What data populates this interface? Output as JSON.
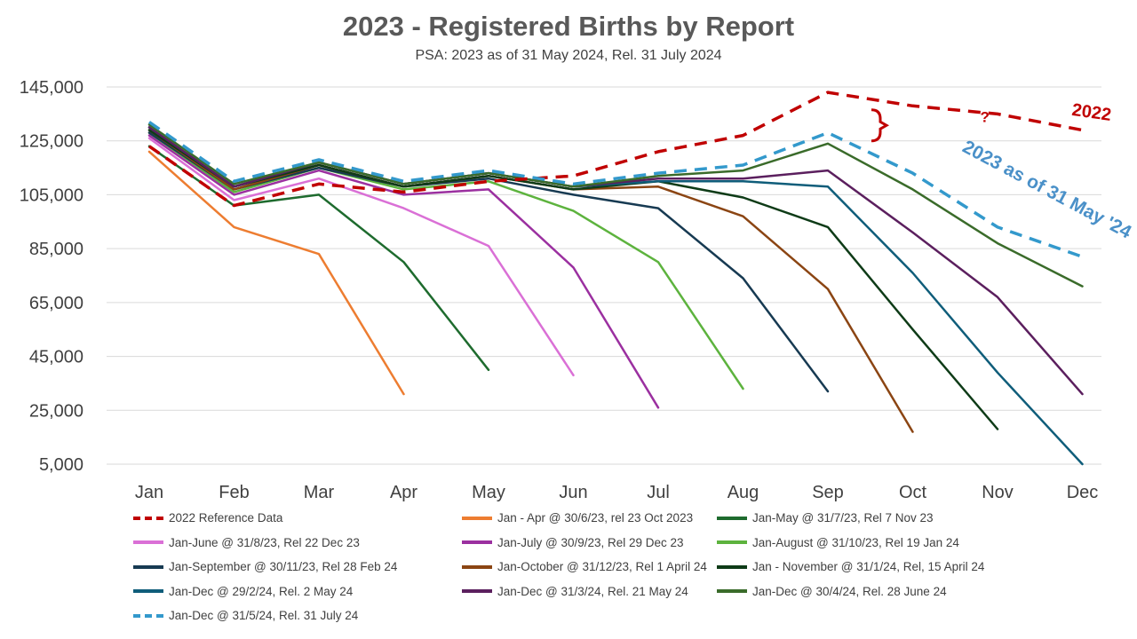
{
  "chart_data": {
    "type": "line",
    "title": "2023 - Registered Births by Report",
    "subtitle": "PSA: 2023 as of 31 May 2024, Rel. 31 July 2024",
    "categories": [
      "Jan",
      "Feb",
      "Mar",
      "Apr",
      "May",
      "Jun",
      "Jul",
      "Aug",
      "Sep",
      "Oct",
      "Nov",
      "Dec"
    ],
    "ylim": [
      5000,
      145000
    ],
    "yticks": [
      "145,000",
      "125,000",
      "105,000",
      "85,000",
      "65,000",
      "45,000",
      "25,000",
      "5,000"
    ],
    "ytick_values": [
      145000,
      125000,
      105000,
      85000,
      65000,
      45000,
      25000,
      5000
    ],
    "grid": true,
    "legend_position": "bottom",
    "annotations": [
      {
        "text": "2022",
        "color": "#C00000",
        "x": 11.1,
        "y": 133500
      },
      {
        "text": "2023 as of 31 May '24",
        "color": "#4A90C8",
        "x": 10.55,
        "y": 105000
      },
      {
        "text": "?",
        "color": "#C00000",
        "x": 9.85,
        "y": 132000
      }
    ],
    "series": [
      {
        "name": "2022 Reference Data",
        "color": "#C00000",
        "dashed": true,
        "width": 3.5,
        "values": [
          123000,
          101000,
          109000,
          106000,
          110000,
          112000,
          121000,
          127000,
          143000,
          138000,
          135000,
          129000
        ]
      },
      {
        "name": "Jan - Apr @ 30/6/23, rel 23 Oct 2023",
        "color": "#ED7D31",
        "dashed": false,
        "width": 2.5,
        "values": [
          121000,
          93000,
          83000,
          31000,
          null,
          null,
          null,
          null,
          null,
          null,
          null,
          null
        ]
      },
      {
        "name": "Jan-May @ 31/7/23, Rel 7 Nov 23",
        "color": "#1E6B2E",
        "dashed": false,
        "width": 2.5,
        "values": [
          123000,
          101000,
          105000,
          80000,
          40000,
          null,
          null,
          null,
          null,
          null,
          null,
          null
        ]
      },
      {
        "name": "Jan-June @ 31/8/23, Rel 22 Dec 23",
        "color": "#DA70D6",
        "dashed": false,
        "width": 2.5,
        "values": [
          126000,
          103000,
          111000,
          100000,
          86000,
          38000,
          null,
          null,
          null,
          null,
          null,
          null
        ]
      },
      {
        "name": "Jan-July @ 30/9/23, Rel 29 Dec 23",
        "color": "#9B30A0",
        "dashed": false,
        "width": 2.5,
        "values": [
          127000,
          105000,
          114000,
          105000,
          107000,
          78000,
          26000,
          null,
          null,
          null,
          null,
          null
        ]
      },
      {
        "name": "Jan-August @ 31/10/23, Rel 19 Jan 24",
        "color": "#5DB33E",
        "dashed": false,
        "width": 2.5,
        "values": [
          128000,
          106000,
          115000,
          107000,
          110000,
          99000,
          80000,
          33000,
          null,
          null,
          null,
          null
        ]
      },
      {
        "name": "Jan-September @ 30/11/23, Rel 28 Feb 24",
        "color": "#173A52",
        "dashed": false,
        "width": 2.5,
        "values": [
          128000,
          107000,
          115000,
          108000,
          111000,
          105000,
          100000,
          74000,
          32000,
          null,
          null,
          null
        ]
      },
      {
        "name": "Jan-October @ 31/12/23, Rel 1 April 24",
        "color": "#8B4513",
        "dashed": false,
        "width": 2.5,
        "values": [
          129000,
          107000,
          116000,
          108000,
          112000,
          107000,
          108000,
          97000,
          70000,
          17000,
          null,
          null
        ]
      },
      {
        "name": "Jan - November @ 31/1/24, Rel, 15 April 24",
        "color": "#0E3B17",
        "dashed": false,
        "width": 2.5,
        "values": [
          129000,
          108000,
          116000,
          108000,
          112000,
          107000,
          110000,
          104000,
          93000,
          55000,
          18000,
          null
        ]
      },
      {
        "name": "Jan-Dec @ 29/2/24, Rel. 2 May 24",
        "color": "#0F5D7A",
        "dashed": false,
        "width": 2.5,
        "values": [
          130000,
          108000,
          117000,
          109000,
          113000,
          108000,
          110000,
          110000,
          108000,
          76000,
          39000,
          5000
        ]
      },
      {
        "name": "Jan-Dec @ 31/3/24, Rel. 21 May 24",
        "color": "#5B1F5E",
        "dashed": false,
        "width": 2.5,
        "values": [
          130000,
          108000,
          117000,
          109000,
          113000,
          108000,
          111000,
          111000,
          114000,
          91000,
          67000,
          31000
        ]
      },
      {
        "name": "Jan-Dec @ 30/4/24, Rel. 28 June 24",
        "color": "#3A6B2A",
        "dashed": false,
        "width": 2.5,
        "values": [
          131000,
          109000,
          117000,
          109000,
          113000,
          108000,
          112000,
          114000,
          124000,
          107000,
          87000,
          71000
        ]
      },
      {
        "name": "Jan-Dec @ 31/5/24, Rel. 31 July 24",
        "color": "#3399CC",
        "dashed": true,
        "width": 3.5,
        "values": [
          132000,
          110000,
          118000,
          110000,
          114000,
          109000,
          113000,
          116000,
          128000,
          113000,
          93000,
          82000
        ]
      }
    ]
  }
}
